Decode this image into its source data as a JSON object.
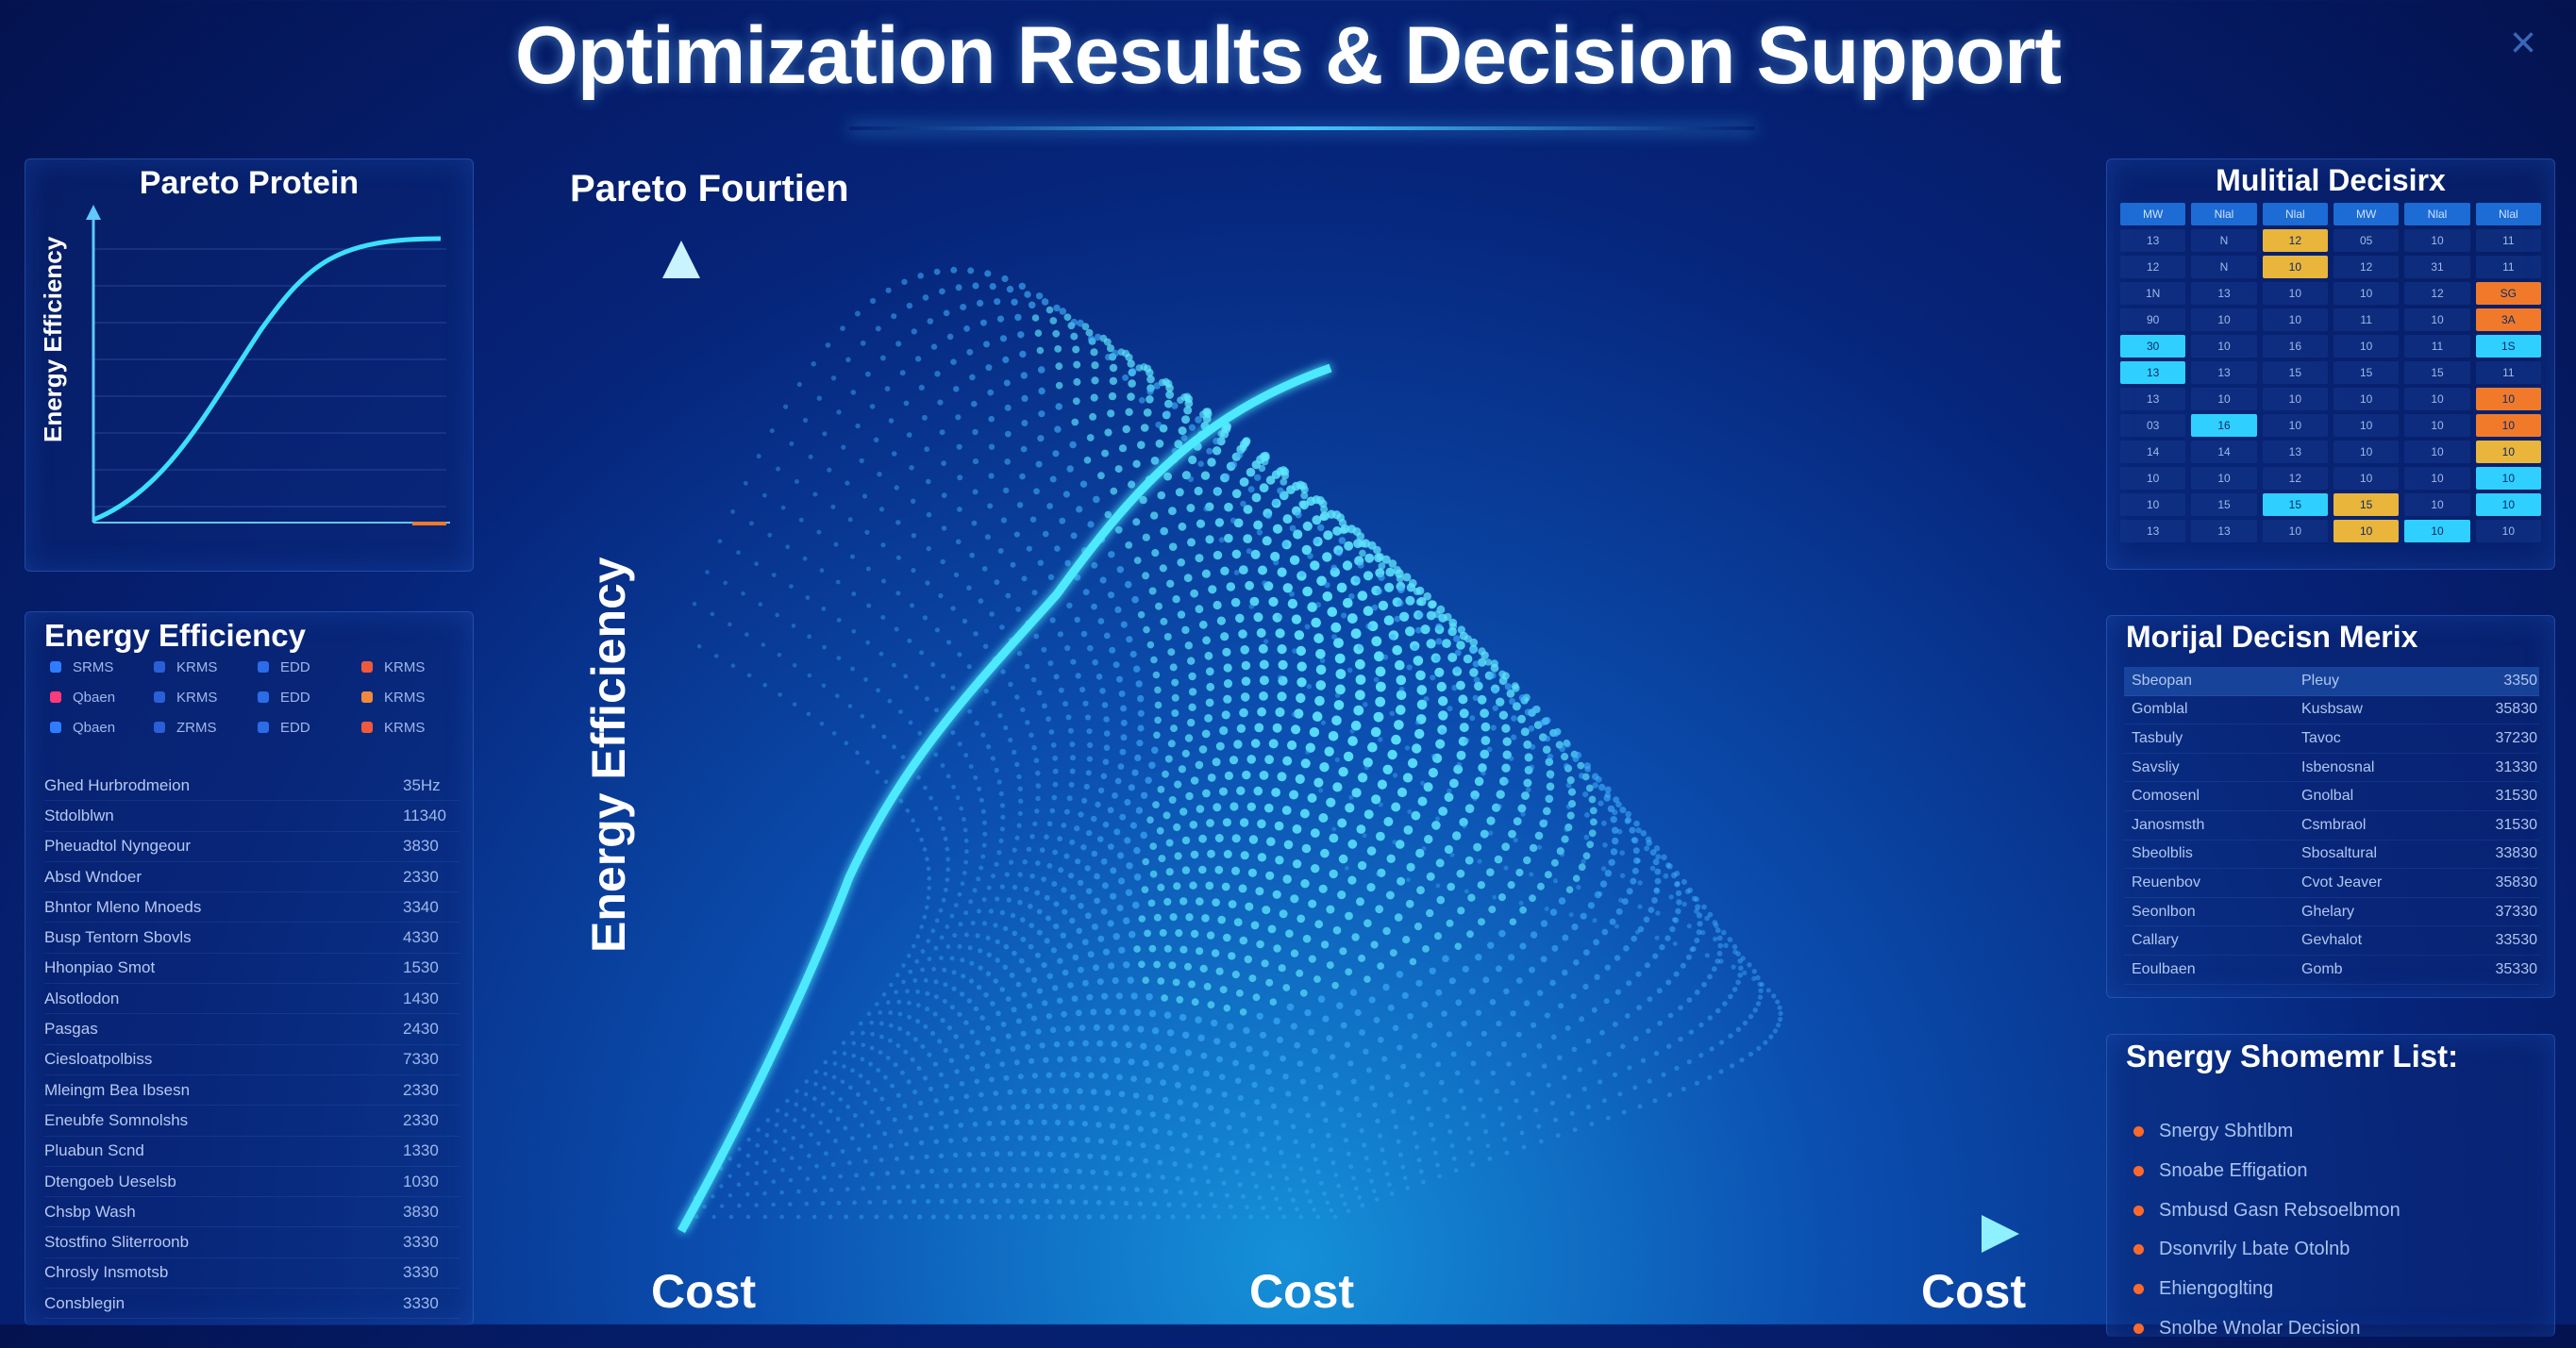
{
  "title": "Optimization Results & Decision Support",
  "close_icon": "×",
  "colors": {
    "accent": "#3de0ff",
    "orange": "#f07a2a",
    "amber": "#e9b53a"
  },
  "left_top_panel": {
    "title": "Pareto Protein",
    "y_label": "Energy Efficiency"
  },
  "left_mid_panel": {
    "title": "Energy Efficiency",
    "legend": [
      {
        "label": "SRMS",
        "color": "#2f7dff"
      },
      {
        "label": "KRMS",
        "color": "#2a5fd8"
      },
      {
        "label": "EDD",
        "color": "#2b6ce8"
      },
      {
        "label": "KRMS",
        "color": "#f05a3a"
      },
      {
        "label": "Qbaen",
        "color": "#ff3a7a"
      },
      {
        "label": "KRMS",
        "color": "#2a5fd8"
      },
      {
        "label": "EDD",
        "color": "#2b6ce8"
      },
      {
        "label": "KRMS",
        "color": "#f08a3a"
      },
      {
        "label": "Qbaen",
        "color": "#2f7dff"
      },
      {
        "label": "ZRMS",
        "color": "#2a5fd8"
      },
      {
        "label": "EDD",
        "color": "#2b6ce8"
      },
      {
        "label": "KRMS",
        "color": "#f05a3a"
      }
    ],
    "rows": [
      {
        "label": "Ghed Hurbrodmeion",
        "value": "35Hz"
      },
      {
        "label": "Stdolblwn",
        "value": "11340"
      },
      {
        "label": "Pheuadtol Nyngeour",
        "value": "3830"
      },
      {
        "label": "Absd Wndoer",
        "value": "2330"
      },
      {
        "label": "Bhntor Mleno Mnoeds",
        "value": "3340"
      },
      {
        "label": "Busp Tentorn Sbovls",
        "value": "4330"
      },
      {
        "label": "Hhonpiao Smot",
        "value": "1530"
      },
      {
        "label": "Alsotlodon",
        "value": "1430"
      },
      {
        "label": "Pasgas",
        "value": "2430"
      },
      {
        "label": "Ciesloatpolbiss",
        "value": "7330"
      },
      {
        "label": "Mleingm Bea Ibsesn",
        "value": "2330"
      },
      {
        "label": "Eneubfe Somnolshs",
        "value": "2330"
      },
      {
        "label": "Pluabun Scnd",
        "value": "1330"
      },
      {
        "label": "Dtengoeb Ueselsb",
        "value": "1030"
      },
      {
        "label": "Chsbp Wash",
        "value": "3830"
      },
      {
        "label": "Stostfino Sliterroonb",
        "value": "3330"
      },
      {
        "label": "Chrosly Insmotsb",
        "value": "3330"
      },
      {
        "label": "Consblegin",
        "value": "3330"
      }
    ]
  },
  "main": {
    "title": "Pareto Fourtien",
    "y_axis_title": "Energy Efficiency",
    "x_labels": [
      "Cost",
      "Cost",
      "Cost"
    ]
  },
  "right_top_panel": {
    "title": "Mulitial Decisirx",
    "headers": [
      "MW",
      "Nlal",
      "Nlal",
      "MW",
      "Nlal",
      "Nlal"
    ],
    "cells": [
      [
        "13",
        "N",
        "12",
        "05",
        "10",
        "11"
      ],
      [
        "12",
        "N",
        "10",
        "12",
        "31",
        "11"
      ],
      [
        "1N",
        "13",
        "10",
        "10",
        "12",
        "SG"
      ],
      [
        "90",
        "10",
        "10",
        "11",
        "10",
        "3A"
      ],
      [
        "30",
        "10",
        "16",
        "10",
        "11",
        "1S"
      ],
      [
        "13",
        "13",
        "15",
        "15",
        "15",
        "11"
      ],
      [
        "13",
        "10",
        "10",
        "10",
        "10",
        "10"
      ],
      [
        "03",
        "16",
        "10",
        "10",
        "10",
        "10"
      ],
      [
        "14",
        "14",
        "13",
        "10",
        "10",
        "10"
      ],
      [
        "10",
        "10",
        "12",
        "10",
        "10",
        "10"
      ],
      [
        "10",
        "15",
        "15",
        "15",
        "10",
        "10"
      ],
      [
        "13",
        "13",
        "10",
        "10",
        "10",
        "10"
      ]
    ],
    "highlights": [
      {
        "r": 0,
        "c": 2,
        "color": "#e9b53a"
      },
      {
        "r": 1,
        "c": 2,
        "color": "#e9b53a"
      },
      {
        "r": 2,
        "c": 5,
        "color": "#f07a2a"
      },
      {
        "r": 3,
        "c": 5,
        "color": "#f07a2a"
      },
      {
        "r": 4,
        "c": 0,
        "color": "#2fd0ff"
      },
      {
        "r": 4,
        "c": 5,
        "color": "#2fd0ff"
      },
      {
        "r": 5,
        "c": 0,
        "color": "#2fd0ff"
      },
      {
        "r": 6,
        "c": 5,
        "color": "#f07a2a"
      },
      {
        "r": 7,
        "c": 1,
        "color": "#2fd0ff"
      },
      {
        "r": 7,
        "c": 5,
        "color": "#f07a2a"
      },
      {
        "r": 8,
        "c": 5,
        "color": "#e9b53a"
      },
      {
        "r": 9,
        "c": 5,
        "color": "#2fd0ff"
      },
      {
        "r": 10,
        "c": 2,
        "color": "#2fd0ff"
      },
      {
        "r": 10,
        "c": 3,
        "color": "#e9b53a"
      },
      {
        "r": 10,
        "c": 5,
        "color": "#2fd0ff"
      },
      {
        "r": 11,
        "c": 3,
        "color": "#e9b53a"
      },
      {
        "r": 11,
        "c": 4,
        "color": "#2fd0ff"
      }
    ]
  },
  "right_mid_panel": {
    "title": "Morijal Decisn Merix",
    "header": [
      "Sbeopan",
      "Pleuy",
      "3350"
    ],
    "rows": [
      [
        "Gomblal",
        "Kusbsaw",
        "35830"
      ],
      [
        "Tasbuly",
        "Tavoc",
        "37230"
      ],
      [
        "Savsliy",
        "Isbenosnal",
        "31330"
      ],
      [
        "Comosenl",
        "Gnolbal",
        "31530"
      ],
      [
        "Janosmsth",
        "Csmbraol",
        "31530"
      ],
      [
        "Sbeolblis",
        "Sbosaltural",
        "33830"
      ],
      [
        "Reuenbov",
        "Cvot Jeaver",
        "35830"
      ],
      [
        "Seonlbon",
        "Ghelary",
        "37330"
      ],
      [
        "Callary",
        "Gevhalot",
        "33530"
      ],
      [
        "Eoulbaen",
        "Gomb",
        "35330"
      ]
    ]
  },
  "right_bottom_panel": {
    "title": "Snergy Shomemr List:",
    "items": [
      "Snergy Sbhtlbm",
      "Snoabe Effigation",
      "Smbusd Gasn Rebsoelbmon",
      "Dsonvrily Lbate Otolnb",
      "Ehiengoglting",
      "Snolbe Wnolar Decision"
    ]
  }
}
